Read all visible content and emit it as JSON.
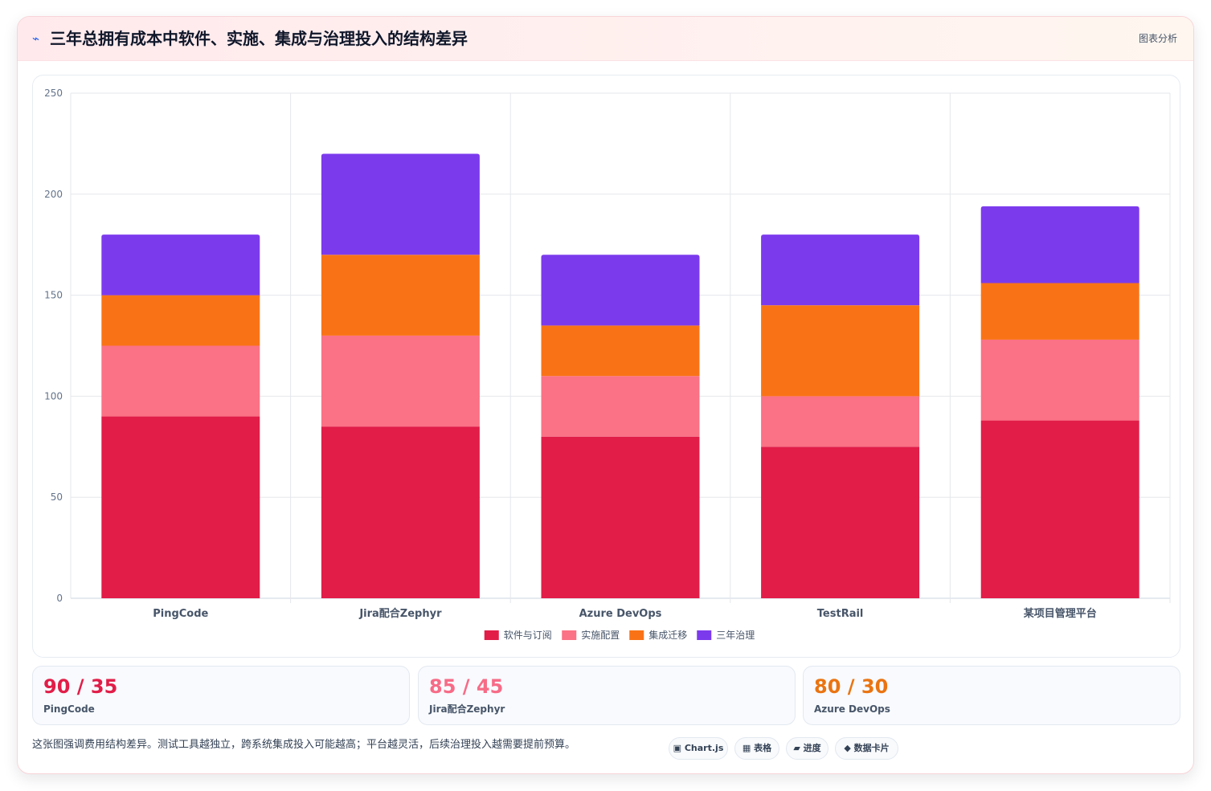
{
  "header": {
    "icon": "⌁",
    "title": "三年总拥有成本中软件、实施、集成与治理投入的结构差异",
    "right_label": "图表分析"
  },
  "chart_data": {
    "type": "bar",
    "stacked": true,
    "categories": [
      "PingCode",
      "Jira配合Zephyr",
      "Azure DevOps",
      "TestRail",
      "某项目管理平台"
    ],
    "series": [
      {
        "name": "软件与订阅",
        "color": "#e11d48",
        "values": [
          90,
          85,
          80,
          75,
          88
        ]
      },
      {
        "name": "实施配置",
        "color": "#fb7185",
        "values": [
          35,
          45,
          30,
          25,
          40
        ]
      },
      {
        "name": "集成迁移",
        "color": "#f97316",
        "values": [
          25,
          40,
          25,
          45,
          28
        ]
      },
      {
        "name": "三年治理",
        "color": "#7c3aed",
        "values": [
          30,
          50,
          35,
          35,
          38
        ]
      }
    ],
    "ylim": [
      0,
      250
    ],
    "yticks": [
      0,
      50,
      100,
      150,
      200,
      250
    ],
    "grid": true,
    "legend": "bottom"
  },
  "stats": [
    {
      "value": "90 / 35",
      "label": "PingCode",
      "color": "#e11d48"
    },
    {
      "value": "85 / 45",
      "label": "Jira配合Zephyr",
      "color": "#f76b87"
    },
    {
      "value": "80 / 30",
      "label": "Azure DevOps",
      "color": "#ea7411"
    }
  ],
  "footnote": "这张图强调费用结构差异。测试工具越独立，跨系统集成投入可能越高；平台越灵活，后续治理投入越需要提前预算。",
  "chips": [
    {
      "icon": "▣",
      "label": "Chart.js"
    },
    {
      "icon": "▦",
      "label": "表格"
    },
    {
      "icon": "▰",
      "label": "进度"
    },
    {
      "icon": "◆",
      "label": "数据卡片"
    }
  ]
}
